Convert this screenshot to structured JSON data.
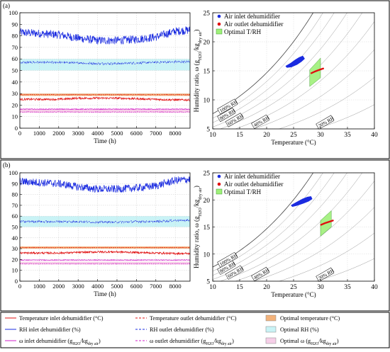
{
  "panels": [
    {
      "tag": "(a)"
    },
    {
      "tag": "(b)"
    }
  ],
  "legend": {
    "items": [
      {
        "label": "Temperature inlet dehumidifier (°C)",
        "color": "#e01010",
        "style": "solid"
      },
      {
        "label": "Temperature outlet dehumidifier (°C)",
        "color": "#e01010",
        "style": "dashed"
      },
      {
        "label": "Optimal temperature (°C)",
        "color": "#f3b27a",
        "style": "patch"
      },
      {
        "label": "RH inlet dehumidifier  (%)",
        "color": "#1a2be0",
        "style": "solid"
      },
      {
        "label": "RH outlet dehumidifier  (%)",
        "color": "#1a2be0",
        "style": "dashed"
      },
      {
        "label": "Optimal RH (%)",
        "color": "#c9f3f6",
        "style": "patch"
      },
      {
        "label": "ω inlet dehumidifier (gH2O/kgdry air)",
        "color": "#d21fc9",
        "style": "solid"
      },
      {
        "label": "ω outlet dehumidifier (gH2O/kgdry air)",
        "color": "#d21fc9",
        "style": "dashed"
      },
      {
        "label": "Optimal ω (gH2O/kgdry air)",
        "color": "#f6cfe8",
        "style": "patch"
      }
    ]
  },
  "chart_data": [
    {
      "id": "a-time",
      "type": "line",
      "xlabel": "Time (h)",
      "xlim": [
        0,
        8760
      ],
      "ylim": [
        0,
        100
      ],
      "xticks": [
        0,
        1000,
        2000,
        3000,
        4000,
        5000,
        6000,
        7000,
        8000
      ],
      "yticks": [
        0,
        10,
        20,
        30,
        40,
        50,
        60,
        70,
        80,
        90,
        100
      ],
      "bands": [
        {
          "name": "Optimal RH (%)",
          "range": [
            50,
            60
          ],
          "color": "#c9f3f6"
        },
        {
          "name": "Optimal temperature (°C)",
          "range": [
            28,
            30
          ],
          "color": "#f3b27a"
        },
        {
          "name": "Optimal ω (gH2O/kgdry air)",
          "range": [
            13.5,
            16.5
          ],
          "color": "#f6cfe8"
        }
      ],
      "series": [
        {
          "name": "RH inlet dehumidifier  (%)",
          "style": "solid",
          "color": "#1a2be0",
          "x": [
            0,
            1000,
            2000,
            3000,
            4000,
            5000,
            6000,
            7000,
            8000,
            8760
          ],
          "y": [
            83,
            82,
            81,
            78,
            76,
            76,
            77,
            79,
            84,
            85
          ]
        },
        {
          "name": "RH outlet dehumidifier  (%)",
          "style": "dashed",
          "color": "#1a2be0",
          "x": [
            0,
            1000,
            2000,
            3000,
            4000,
            5000,
            6000,
            7000,
            8000,
            8760
          ],
          "y": [
            57,
            57,
            57,
            56.5,
            56,
            56,
            56.5,
            57,
            57.5,
            57.5
          ]
        },
        {
          "name": "Temperature outlet dehumidifier (°C)",
          "style": "dashed",
          "color": "#e01010",
          "x": [
            0,
            1000,
            2000,
            3000,
            4000,
            5000,
            6000,
            7000,
            8000,
            8760
          ],
          "y": [
            29,
            29,
            29,
            29,
            29,
            29,
            29,
            29,
            29,
            29
          ]
        },
        {
          "name": "Temperature inlet dehumidifier (°C)",
          "style": "solid",
          "color": "#e01010",
          "x": [
            0,
            1000,
            2000,
            3000,
            4000,
            5000,
            6000,
            7000,
            8000,
            8760
          ],
          "y": [
            25,
            25,
            25,
            26,
            26,
            26,
            25.5,
            25,
            24.5,
            24.5
          ]
        },
        {
          "name": "ω inlet dehumidifier (gH2O/kgdry air)",
          "style": "solid",
          "color": "#d21fc9",
          "x": [
            0,
            1000,
            2000,
            3000,
            4000,
            5000,
            6000,
            7000,
            8000,
            8760
          ],
          "y": [
            16.5,
            16.5,
            16.5,
            16.5,
            16.5,
            16.5,
            16.5,
            16.5,
            16.5,
            16.5
          ]
        },
        {
          "name": "ω outlet dehumidifier (gH2O/kgdry air)",
          "style": "dashed",
          "color": "#d21fc9",
          "x": [
            0,
            1000,
            2000,
            3000,
            4000,
            5000,
            6000,
            7000,
            8000,
            8760
          ],
          "y": [
            14,
            14,
            14,
            14,
            14,
            14,
            14,
            14,
            14,
            14
          ]
        }
      ]
    },
    {
      "id": "a-psy",
      "type": "scatter",
      "xlabel": "Temperature (°C)",
      "ylabel": "Humidity ratio, ω (gH2O/kgdry air)",
      "xlim": [
        10,
        40
      ],
      "ylim": [
        5,
        25
      ],
      "xticks": [
        10,
        15,
        20,
        25,
        30,
        35,
        40
      ],
      "yticks": [
        5,
        10,
        15,
        20,
        25
      ],
      "rh_curves": [
        100,
        80,
        60,
        40,
        20
      ],
      "rh_labels": [
        "100% RH",
        "80% RH",
        "60% RH",
        "40% RH",
        "20% RH"
      ],
      "legend": [
        "Air inlet dehumidifier",
        "Air outlet dehumidifier",
        "Optimal T/RH"
      ],
      "optimal_region": [
        [
          28,
          12.3
        ],
        [
          30,
          13.8
        ],
        [
          30,
          17.2
        ],
        [
          28,
          15.2
        ]
      ],
      "inlet_cluster": {
        "color": "#1a2be0",
        "points": [
          [
            23.6,
            15.8
          ],
          [
            24.5,
            16.3
          ],
          [
            25.4,
            16.9
          ],
          [
            26.1,
            17.3
          ],
          [
            26.7,
            17.5
          ],
          [
            27.0,
            17.1
          ],
          [
            26.4,
            16.6
          ],
          [
            25.6,
            16.1
          ],
          [
            24.6,
            15.7
          ],
          [
            23.8,
            15.6
          ]
        ]
      },
      "outlet_cluster": {
        "color": "#e01010",
        "points": [
          [
            28.3,
            14.6
          ],
          [
            29.0,
            14.9
          ],
          [
            29.6,
            15.1
          ],
          [
            30.2,
            15.3
          ],
          [
            30.5,
            15.4
          ]
        ]
      }
    },
    {
      "id": "b-time",
      "type": "line",
      "xlabel": "Time (h)",
      "xlim": [
        0,
        8760
      ],
      "ylim": [
        0,
        100
      ],
      "xticks": [
        0,
        1000,
        2000,
        3000,
        4000,
        5000,
        6000,
        7000,
        8000
      ],
      "yticks": [
        0,
        10,
        20,
        30,
        40,
        50,
        60,
        70,
        80,
        90,
        100
      ],
      "bands": [
        {
          "name": "Optimal RH (%)",
          "range": [
            50,
            60
          ],
          "color": "#c9f3f6"
        },
        {
          "name": "Optimal temperature (°C)",
          "range": [
            30,
            32
          ],
          "color": "#f3b27a"
        },
        {
          "name": "Optimal ω (gH2O/kgdry air)",
          "range": [
            15.5,
            18
          ],
          "color": "#f6cfe8"
        }
      ],
      "series": [
        {
          "name": "RH inlet dehumidifier  (%)",
          "style": "solid",
          "color": "#1a2be0",
          "x": [
            0,
            1000,
            2000,
            3000,
            4000,
            5000,
            6000,
            7000,
            8000,
            8760
          ],
          "y": [
            92,
            91,
            90,
            87,
            85,
            85,
            86,
            88,
            93,
            94
          ]
        },
        {
          "name": "RH outlet dehumidifier  (%)",
          "style": "dashed",
          "color": "#1a2be0",
          "x": [
            0,
            1000,
            2000,
            3000,
            4000,
            5000,
            6000,
            7000,
            8000,
            8760
          ],
          "y": [
            55,
            55,
            55,
            55,
            54.5,
            54.5,
            55,
            55,
            56,
            56
          ]
        },
        {
          "name": "Temperature outlet dehumidifier (°C)",
          "style": "dashed",
          "color": "#e01010",
          "x": [
            0,
            1000,
            2000,
            3000,
            4000,
            5000,
            6000,
            7000,
            8000,
            8760
          ],
          "y": [
            31,
            31,
            31,
            31,
            31,
            31,
            31,
            31,
            31,
            31
          ]
        },
        {
          "name": "Temperature inlet dehumidifier (°C)",
          "style": "solid",
          "color": "#e01010",
          "x": [
            0,
            1000,
            2000,
            3000,
            4000,
            5000,
            6000,
            7000,
            8000,
            8760
          ],
          "y": [
            26,
            26,
            26,
            26.5,
            27,
            27,
            26.5,
            26,
            25.5,
            25.5
          ]
        },
        {
          "name": "ω inlet dehumidifier (gH2O/kgdry air)",
          "style": "solid",
          "color": "#d21fc9",
          "x": [
            0,
            1000,
            2000,
            3000,
            4000,
            5000,
            6000,
            7000,
            8000,
            8760
          ],
          "y": [
            19.5,
            19.5,
            19.5,
            19.5,
            19.5,
            19.5,
            19.5,
            19.5,
            19.5,
            19.5
          ]
        },
        {
          "name": "ω outlet dehumidifier (gH2O/kgdry air)",
          "style": "dashed",
          "color": "#d21fc9",
          "x": [
            0,
            1000,
            2000,
            3000,
            4000,
            5000,
            6000,
            7000,
            8000,
            8760
          ],
          "y": [
            16,
            16,
            16,
            16,
            16,
            16,
            16,
            16,
            16,
            16
          ]
        }
      ]
    },
    {
      "id": "b-psy",
      "type": "scatter",
      "xlabel": "Temperature (°C)",
      "ylabel": "Humidity ratio, ω (gH2O/kgdry air)",
      "xlim": [
        10,
        40
      ],
      "ylim": [
        5,
        25
      ],
      "xticks": [
        10,
        15,
        20,
        25,
        30,
        35,
        40
      ],
      "yticks": [
        5,
        10,
        15,
        20,
        25
      ],
      "rh_curves": [
        100,
        80,
        60,
        40,
        20
      ],
      "rh_labels": [
        "100% RH",
        "80% RH",
        "60% RH",
        "40% RH",
        "20% RH"
      ],
      "legend": [
        "Air inlet dehumidifier",
        "Air outlet dehumidifier",
        "Optimal T/RH"
      ],
      "optimal_region": [
        [
          30,
          13.3
        ],
        [
          32,
          15.0
        ],
        [
          32,
          18.0
        ],
        [
          30,
          16.2
        ]
      ],
      "inlet_cluster": {
        "color": "#1a2be0",
        "points": [
          [
            24.6,
            19.0
          ],
          [
            25.5,
            19.5
          ],
          [
            26.6,
            20.1
          ],
          [
            27.6,
            20.5
          ],
          [
            28.2,
            20.6
          ],
          [
            28.4,
            20.2
          ],
          [
            27.8,
            19.8
          ],
          [
            26.8,
            19.4
          ],
          [
            25.6,
            19.0
          ],
          [
            24.8,
            18.8
          ]
        ]
      },
      "outlet_cluster": {
        "color": "#e01010",
        "points": [
          [
            30.1,
            15.4
          ],
          [
            30.8,
            15.7
          ],
          [
            31.4,
            15.9
          ],
          [
            32.0,
            16.1
          ],
          [
            32.3,
            16.2
          ]
        ]
      }
    }
  ]
}
